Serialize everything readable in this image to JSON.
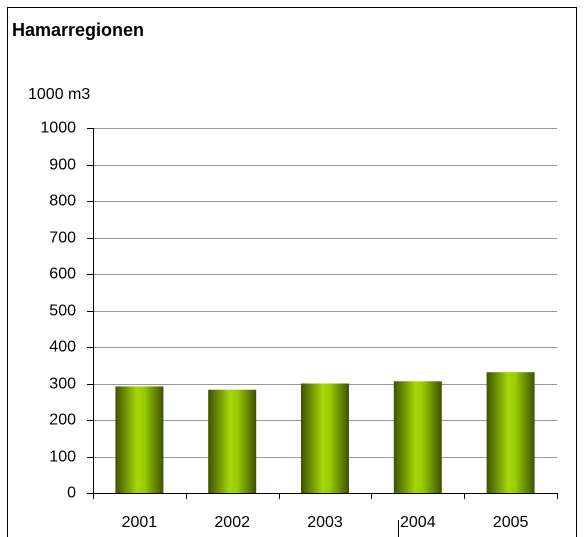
{
  "chart_data": {
    "type": "bar",
    "title": "Hamarregionen",
    "y_label": "1000 m3",
    "categories": [
      "2001",
      "2002",
      "2003",
      "2004",
      "2005"
    ],
    "values": [
      292,
      283,
      300,
      306,
      331
    ],
    "color": "#99cc00",
    "ylim": [
      0,
      1000
    ],
    "yticks": [
      0,
      100,
      200,
      300,
      400,
      500,
      600,
      700,
      800,
      900,
      1000
    ],
    "grid": true
  }
}
